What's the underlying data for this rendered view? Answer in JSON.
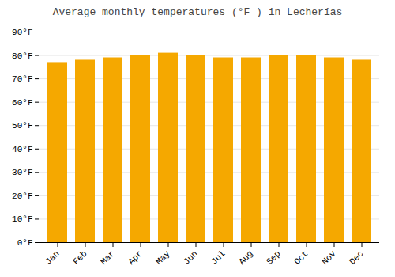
{
  "chart_data": {
    "type": "bar",
    "title": "Average monthly temperatures (°F ) in Lecherías",
    "categories": [
      "Jan",
      "Feb",
      "Mar",
      "Apr",
      "May",
      "Jun",
      "Jul",
      "Aug",
      "Sep",
      "Oct",
      "Nov",
      "Dec"
    ],
    "values": [
      77,
      78,
      79,
      80,
      81,
      80,
      79,
      79,
      80,
      80,
      79,
      78
    ],
    "color": "#F5A800",
    "ylim": [
      0,
      90
    ],
    "yticks": [
      {
        "value": 0,
        "label": "0°F"
      },
      {
        "value": 10,
        "label": "10°F"
      },
      {
        "value": 20,
        "label": "20°F"
      },
      {
        "value": 30,
        "label": "30°F"
      },
      {
        "value": 40,
        "label": "40°F"
      },
      {
        "value": 50,
        "label": "50°F"
      },
      {
        "value": 60,
        "label": "60°F"
      },
      {
        "value": 70,
        "label": "70°F"
      },
      {
        "value": 80,
        "label": "80°F"
      },
      {
        "value": 90,
        "label": "90°F"
      }
    ],
    "grid": true
  }
}
